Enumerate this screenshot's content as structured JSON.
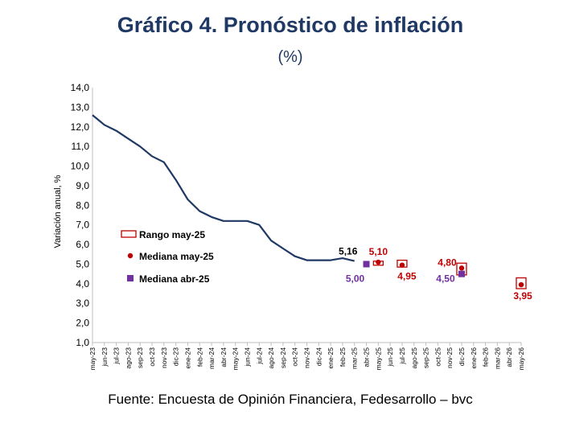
{
  "title": "Gráfico 4. Pronóstico de inflación",
  "subtitle": "(%)",
  "source": "Fuente: Encuesta de Opinión Financiera, Fedesarrollo – bvc",
  "chart_data": {
    "type": "line",
    "ylabel": "Variación anual, %",
    "ylim": [
      1.0,
      14.0
    ],
    "yticks": [
      "1,0",
      "2,0",
      "3,0",
      "4,0",
      "5,0",
      "6,0",
      "7,0",
      "8,0",
      "9,0",
      "10,0",
      "11,0",
      "12,0",
      "13,0",
      "14,0"
    ],
    "categories": [
      "may-23",
      "jun-23",
      "jul-23",
      "ago-23",
      "sep-23",
      "oct-23",
      "nov-23",
      "dic-23",
      "ene-24",
      "feb-24",
      "mar-24",
      "abr-24",
      "may-24",
      "jun-24",
      "jul-24",
      "ago-24",
      "sep-24",
      "oct-24",
      "nov-24",
      "dic-24",
      "ene-25",
      "feb-25",
      "mar-25",
      "abr-25",
      "may-25",
      "jun-25",
      "jul-25",
      "ago-25",
      "sep-25",
      "oct-25",
      "nov-25",
      "dic-25",
      "ene-26",
      "feb-26",
      "mar-26",
      "abr-26",
      "may-26"
    ],
    "series": [
      {
        "values": [
          12.6,
          12.1,
          11.8,
          11.4,
          11.0,
          10.5,
          10.2,
          9.3,
          8.3,
          7.7,
          7.4,
          7.2,
          7.2,
          7.2,
          7.0,
          6.2,
          5.8,
          5.4,
          5.2,
          5.2,
          5.2,
          5.3,
          5.16,
          null,
          null,
          null,
          null,
          null,
          null,
          null,
          null,
          null,
          null,
          null,
          null,
          null,
          null
        ],
        "color": "#1f3864"
      },
      {
        "name": "Rango may-25",
        "type": "range",
        "points": [
          {
            "x": "may-25",
            "low": 5.05,
            "high": 5.15
          },
          {
            "x": "jul-25",
            "low": 4.85,
            "high": 5.2
          },
          {
            "x": "dic-25",
            "low": 4.45,
            "high": 5.05
          },
          {
            "x": "may-26",
            "low": 3.75,
            "high": 4.3
          }
        ],
        "color": "#c00000"
      },
      {
        "name": "Mediana may-25",
        "type": "marker",
        "points": [
          {
            "x": "may-25",
            "y": 5.1,
            "label": "5,10"
          },
          {
            "x": "jul-25",
            "y": 4.95,
            "label": "4,95"
          },
          {
            "x": "dic-25",
            "y": 4.8,
            "label": "4,80"
          },
          {
            "x": "may-26",
            "y": 3.95,
            "label": "3,95"
          }
        ],
        "color": "#c00000"
      },
      {
        "name": "Mediana abr-25",
        "type": "marker",
        "points": [
          {
            "x": "abr-25",
            "y": 5.0,
            "label": "5,00"
          },
          {
            "x": "dic-25",
            "y": 4.5,
            "label": "4,50"
          }
        ],
        "color": "#7030a0"
      }
    ],
    "annotations": [
      {
        "x": "mar-25",
        "y": 5.16,
        "label": "5,16"
      }
    ],
    "legend": {
      "placement": "left-middle",
      "entries": [
        "Rango may-25",
        "Mediana may-25",
        "Mediana abr-25"
      ]
    },
    "grid": false
  }
}
